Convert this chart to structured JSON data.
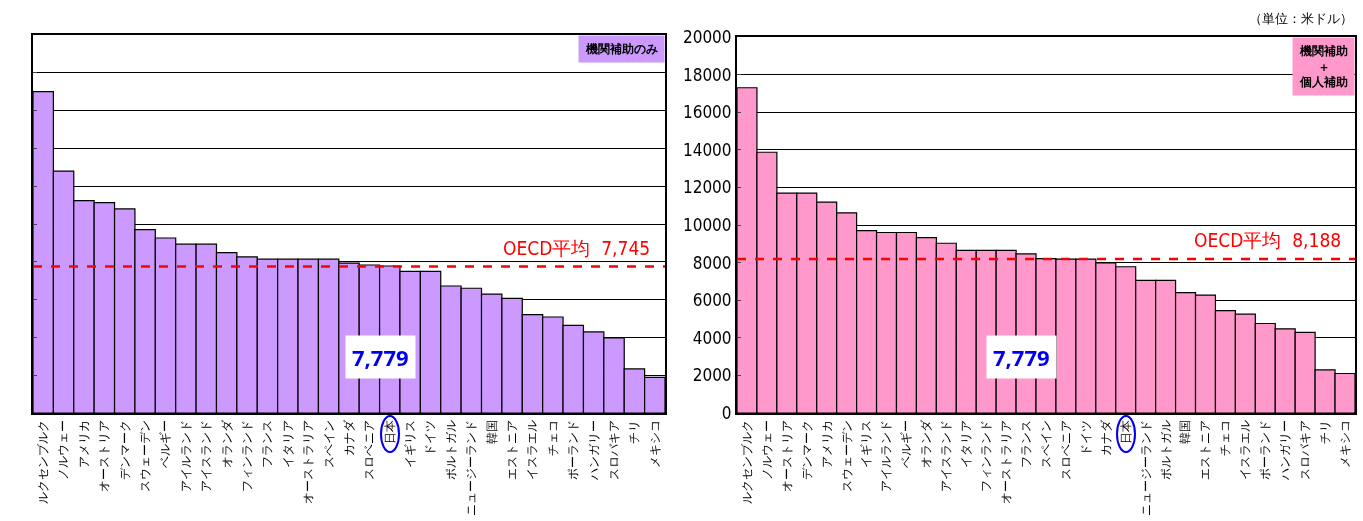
{
  "chart_data": [
    {
      "type": "bar",
      "title": "機関補助のみ",
      "categories": [
        "ルクセンブルク",
        "ノルウェー",
        "アメリカ",
        "オーストリア",
        "デンマーク",
        "スウェーデン",
        "ベルギー",
        "アイルランド",
        "アイスランド",
        "オランダ",
        "フィンランド",
        "フランス",
        "イタリア",
        "オーストラリア",
        "スペイン",
        "カナダ",
        "スロベニア",
        "日本",
        "イギリス",
        "ドイツ",
        "ポルトガル",
        "ニュージーランド",
        "韓国",
        "エストニア",
        "イスラエル",
        "チェコ",
        "ポーランド",
        "ハンガリー",
        "スロバキア",
        "チリ",
        "メキシコ"
      ],
      "series": [
        {
          "color": "#cc99ff",
          "values": [
            17000,
            12800,
            11240,
            11130,
            10800,
            9700,
            9260,
            8930,
            8930,
            8490,
            8260,
            8140,
            8140,
            8140,
            8140,
            7930,
            7830,
            7779,
            7490,
            7490,
            6720,
            6600,
            6290,
            6060,
            5200,
            5080,
            4640,
            4290,
            3970,
            2330,
            1890
          ]
        }
      ],
      "ylim": [
        0,
        20000
      ],
      "yticks": [
        0,
        2000,
        4000,
        6000,
        8000,
        10000,
        12000,
        14000,
        16000,
        18000,
        20000
      ],
      "tick_labels": "x",
      "grid": "y",
      "ref_lines": [
        {
          "axis": "y",
          "value": 7745,
          "label": "OECD平均  7,745",
          "color": "#ff0000",
          "line_style": "dashed"
        }
      ],
      "annotations": [
        "7,779"
      ]
    },
    {
      "type": "bar",
      "title": "機関補助＋個人補助",
      "categories": [
        "ルクセンブルク",
        "ノルウェー",
        "オーストリア",
        "デンマーク",
        "アメリカ",
        "スウェーデン",
        "イギリス",
        "アイルランド",
        "ベルギー",
        "オランダ",
        "アイスランド",
        "イタリア",
        "フィンランド",
        "オーストラリア",
        "フランス",
        "スペイン",
        "スロベニア",
        "ドイツ",
        "カナダ",
        "日本",
        "ニュージーランド",
        "ポルトガル",
        "韓国",
        "エストニア",
        "チェコ",
        "イスラエル",
        "ポーランド",
        "ハンガリー",
        "スロバキア",
        "チリ",
        "メキシコ"
      ],
      "series": [
        {
          "color": "#ff99cc",
          "values": [
            17300,
            13870,
            11700,
            11700,
            11220,
            10650,
            9700,
            9600,
            9600,
            9330,
            9030,
            8650,
            8650,
            8650,
            8460,
            8210,
            8190,
            8190,
            7980,
            7779,
            7050,
            7050,
            6400,
            6270,
            5450,
            5260,
            4760,
            4480,
            4290,
            2290,
            2100
          ]
        }
      ],
      "ylim": [
        0,
        20000
      ],
      "yticks": [
        0,
        2000,
        4000,
        6000,
        8000,
        10000,
        12000,
        14000,
        16000,
        18000,
        20000
      ],
      "grid": "y",
      "ref_lines": [
        {
          "axis": "y",
          "value": 8188,
          "label": "OECD平均  8,188",
          "color": "#ff0000",
          "line_style": "dashed"
        }
      ],
      "annotations": [
        "7,779",
        "（単位：米ドル）"
      ]
    }
  ]
}
